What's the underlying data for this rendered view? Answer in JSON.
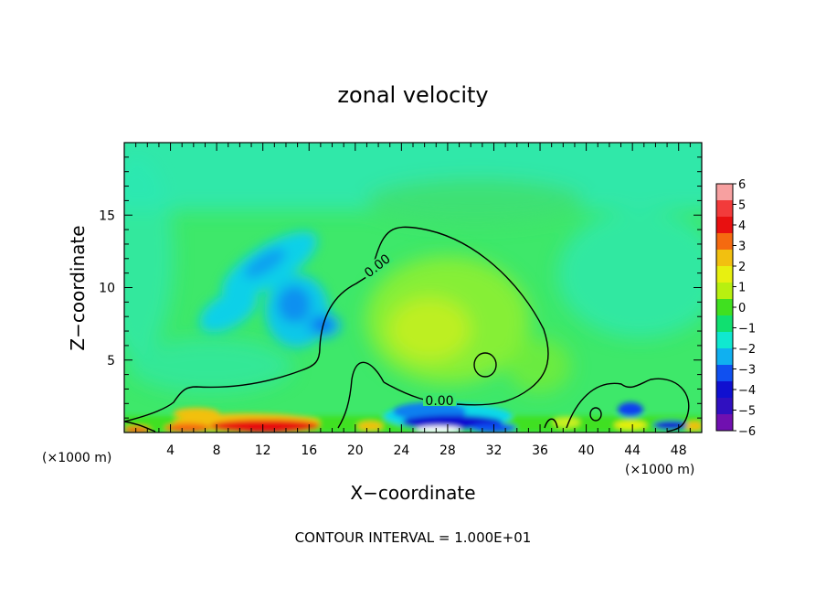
{
  "chart_data": {
    "type": "heatmap",
    "title": "zonal velocity",
    "xlabel": "X−coordinate",
    "ylabel": "Z−coordinate",
    "x_unit_label": "(×1000 m)",
    "y_unit_label": "(×1000 m)",
    "xlim": [
      0,
      50
    ],
    "ylim": [
      0,
      20
    ],
    "x_ticks": [
      4,
      8,
      12,
      16,
      20,
      24,
      28,
      32,
      36,
      40,
      44,
      48
    ],
    "y_ticks": [
      5,
      10,
      15
    ],
    "x_tick_labels": [
      "4",
      "8",
      "12",
      "16",
      "20",
      "24",
      "28",
      "32",
      "36",
      "40",
      "44",
      "48"
    ],
    "y_tick_labels": [
      "5",
      "10",
      "15"
    ],
    "colorbar": {
      "levels": [
        6,
        5,
        4,
        3,
        2,
        1,
        0,
        -1,
        -2,
        -3,
        -4,
        -5,
        -6
      ],
      "labels": [
        "6",
        "5",
        "4",
        "3",
        "2",
        "1",
        "0",
        "−1",
        "−2",
        "−3",
        "−4",
        "−5",
        "−6"
      ],
      "colors": [
        "#f7a0a0",
        "#f23b3b",
        "#e81010",
        "#f56a10",
        "#f2c010",
        "#e8f010",
        "#b8f010",
        "#40e020",
        "#10e070",
        "#10e8d0",
        "#10b0f0",
        "#1050f0",
        "#1010d0",
        "#3010c0",
        "#7010b0"
      ]
    },
    "contour_labels": [
      "0.00",
      "0.00"
    ],
    "contour_level": 0.0,
    "features": [
      {
        "name": "upper negative lobe",
        "x": 13.5,
        "z": 11.5,
        "value": -2.5
      },
      {
        "name": "mid negative core",
        "x": 14.5,
        "z": 8.5,
        "value": -3
      },
      {
        "name": "small negative core",
        "x": 17.0,
        "z": 7.3,
        "value": -3.5
      },
      {
        "name": "positive plume",
        "x": 27.0,
        "z": 8.0,
        "value": 1.5
      },
      {
        "name": "surface positive jet",
        "x": 12.0,
        "z": 0.5,
        "value": 5
      },
      {
        "name": "surface negative jet",
        "x": 27.0,
        "z": 1.2,
        "value": -5
      },
      {
        "name": "surface negative core",
        "x": 43.5,
        "z": 1.5,
        "value": -4
      }
    ],
    "annotation": "CONTOUR INTERVAL = 1.000E+01"
  },
  "colors": {
    "background_field": "#3ee86a",
    "cyan_field": "#2ee8b4"
  }
}
